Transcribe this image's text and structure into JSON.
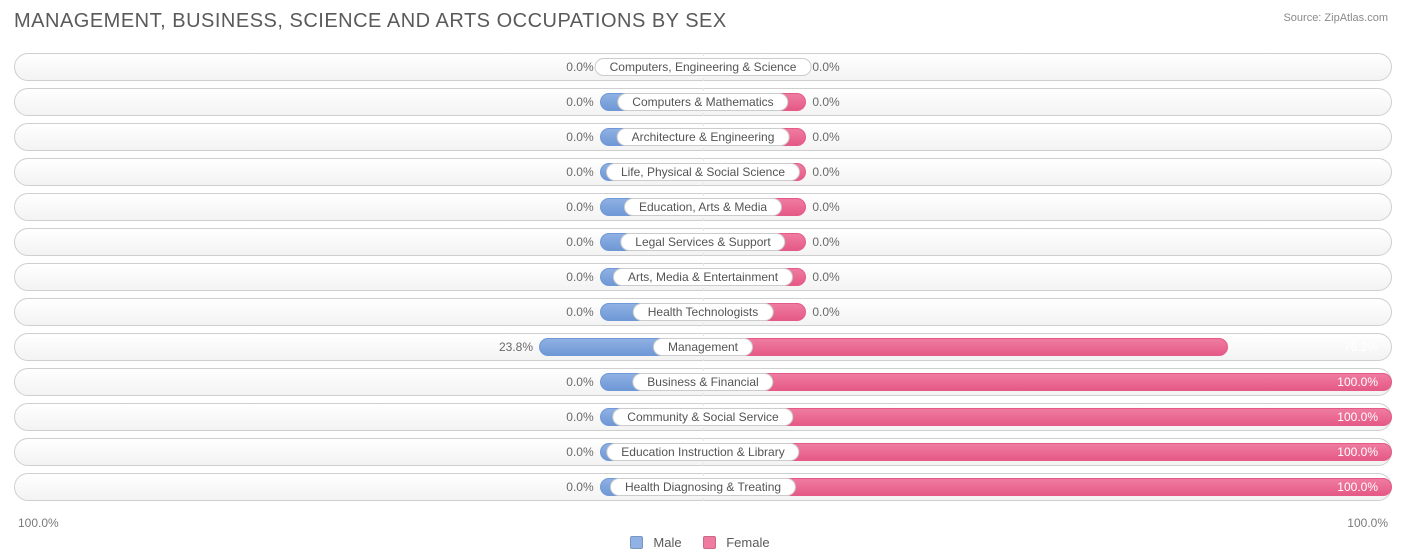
{
  "title": "MANAGEMENT, BUSINESS, SCIENCE AND ARTS OCCUPATIONS BY SEX",
  "source": "Source: ZipAtlas.com",
  "axis_left": "100.0%",
  "axis_right": "100.0%",
  "legend": {
    "male": "Male",
    "female": "Female"
  },
  "chart": {
    "type": "diverging-bar",
    "male_color": "#8fb1e3",
    "male_border": "#6f98d6",
    "female_color": "#ef7ba0",
    "female_border": "#e55a87",
    "track_border": "#cfcfcf",
    "track_bg_top": "#ffffff",
    "track_bg_bot": "#f3f3f3",
    "text_color": "#5a5a5a",
    "value_color": "#6a6a6a",
    "default_bar_pct": 15,
    "label_on_bar_hex": "#ffffff",
    "rows": [
      {
        "label": "Computers, Engineering & Science",
        "male": 0.0,
        "female": 0.0
      },
      {
        "label": "Computers & Mathematics",
        "male": 0.0,
        "female": 0.0
      },
      {
        "label": "Architecture & Engineering",
        "male": 0.0,
        "female": 0.0
      },
      {
        "label": "Life, Physical & Social Science",
        "male": 0.0,
        "female": 0.0
      },
      {
        "label": "Education, Arts & Media",
        "male": 0.0,
        "female": 0.0
      },
      {
        "label": "Legal Services & Support",
        "male": 0.0,
        "female": 0.0
      },
      {
        "label": "Arts, Media & Entertainment",
        "male": 0.0,
        "female": 0.0
      },
      {
        "label": "Health Technologists",
        "male": 0.0,
        "female": 0.0
      },
      {
        "label": "Management",
        "male": 23.8,
        "female": 76.2
      },
      {
        "label": "Business & Financial",
        "male": 0.0,
        "female": 100.0
      },
      {
        "label": "Community & Social Service",
        "male": 0.0,
        "female": 100.0
      },
      {
        "label": "Education Instruction & Library",
        "male": 0.0,
        "female": 100.0
      },
      {
        "label": "Health Diagnosing & Treating",
        "male": 0.0,
        "female": 100.0
      }
    ]
  }
}
